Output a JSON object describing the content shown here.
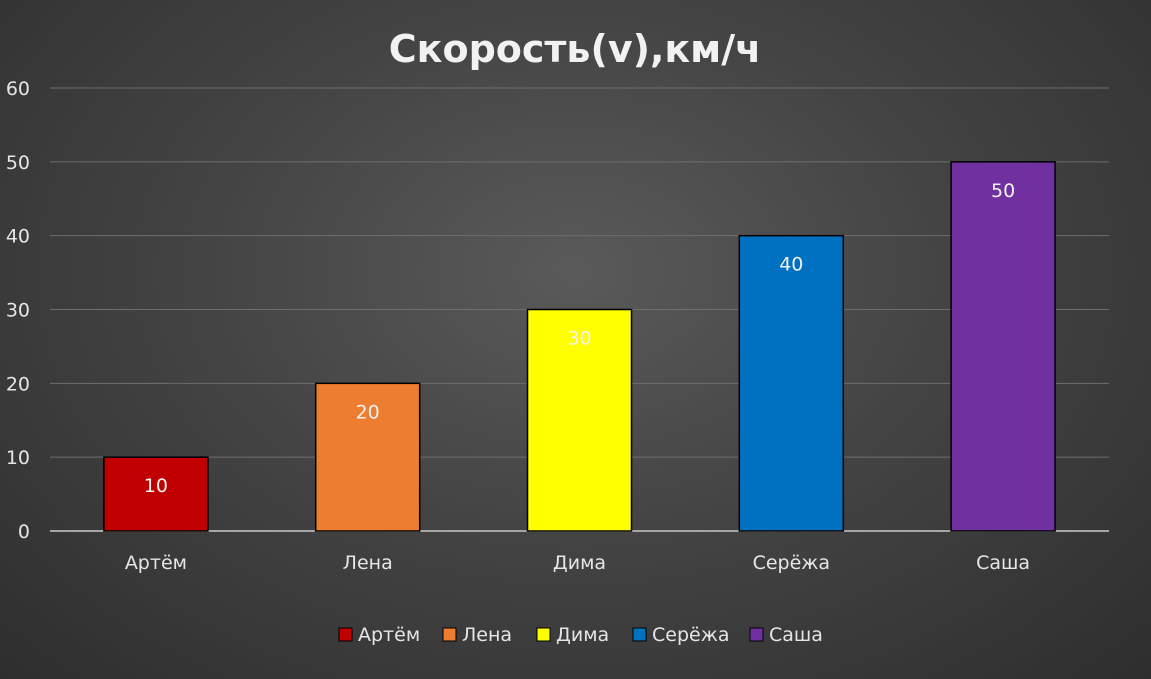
{
  "chart_data": {
    "type": "bar",
    "title": "Скорость(v),км/ч",
    "xlabel": "",
    "ylabel": "",
    "categories": [
      "Артём",
      "Лена",
      "Дима",
      "Серёжа",
      "Саша"
    ],
    "values": [
      10,
      20,
      30,
      40,
      50
    ],
    "colors": [
      "#c00000",
      "#ed7d31",
      "#ffff00",
      "#0070c0",
      "#7030a0"
    ],
    "ylim": [
      0,
      60
    ],
    "yticks": [
      0,
      10,
      20,
      30,
      40,
      50,
      60
    ],
    "grid": true,
    "legend_position": "bottom",
    "data_labels": true
  }
}
